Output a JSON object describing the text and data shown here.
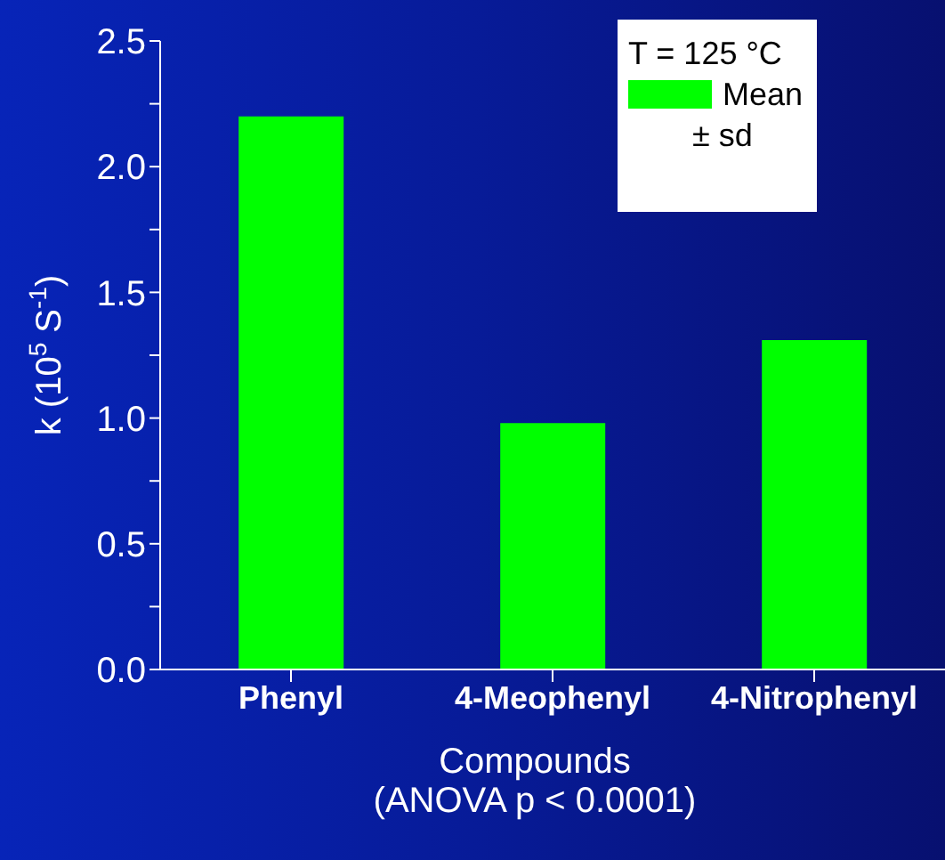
{
  "chart_data": {
    "type": "bar",
    "xlabel": "Compounds\n(ANOVA p < 0.0001)",
    "ylabel": "k (10$^{5}$ S$^{-1}$)",
    "legend_title": "T = 125 °C",
    "categories": [
      "Phenyl",
      "4-Meophenyl",
      "4-Nitrophenyl"
    ],
    "series": [
      {
        "name": "Mean",
        "color": "#00ff00",
        "values": [
          2.2,
          0.98,
          1.31
        ]
      }
    ],
    "annotations": [
      "± sd"
    ],
    "ylim": [
      0,
      2.5
    ],
    "yticks": [
      {
        "value": 0,
        "label": "0.0"
      },
      {
        "value": 0.25,
        "label": null
      },
      {
        "value": 0.5,
        "label": "0.5"
      },
      {
        "value": 0.75,
        "label": null
      },
      {
        "value": 1,
        "label": "1.0"
      },
      {
        "value": 1.25,
        "label": null
      },
      {
        "value": 1.5,
        "label": "1.5"
      },
      {
        "value": 1.75,
        "label": null
      },
      {
        "value": 2,
        "label": "2.0"
      },
      {
        "value": 2.25,
        "label": null
      },
      {
        "value": 2.5,
        "label": "2.5"
      }
    ],
    "legend": "top right",
    "grid": false
  }
}
